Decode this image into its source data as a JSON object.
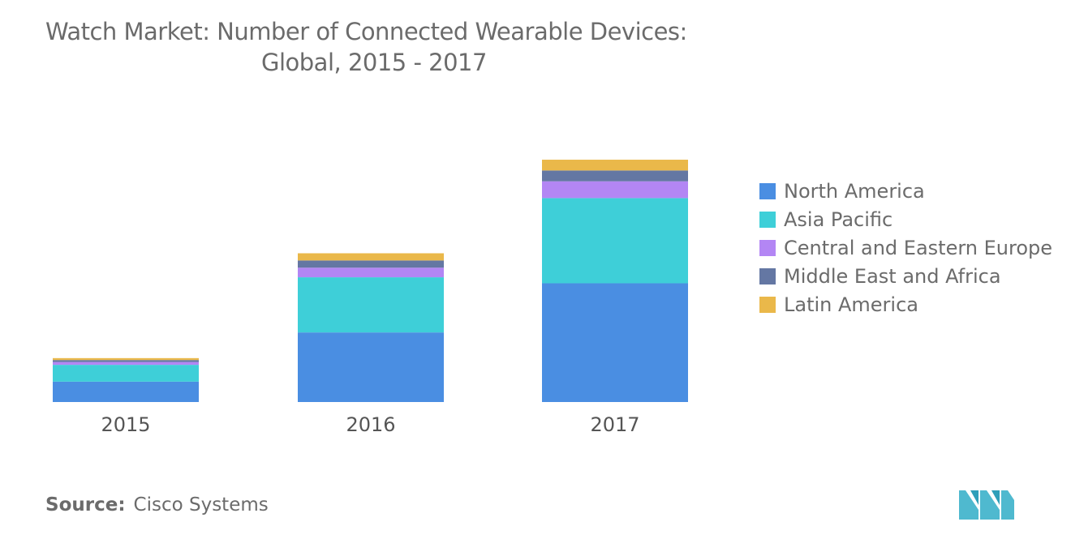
{
  "title_line1": "Watch Market: Number of Connected Wearable Devices:",
  "title_line2": "Global, 2015 - 2017",
  "source_label": "Source:",
  "source_value": "Cisco Systems",
  "logo_icon": "mordor-intelligence-logo-icon",
  "colors": {
    "north_america": "#4a8ee2",
    "asia_pacific": "#3ecfd8",
    "central_eastern_europe": "#b386f4",
    "middle_east_africa": "#6477a3",
    "latin_america": "#eab84a",
    "text": "#6b6b6b",
    "logo": "#4fb9cf"
  },
  "chart_data": {
    "type": "bar",
    "stacked": true,
    "categories": [
      "2015",
      "2016",
      "2017"
    ],
    "ylim": [
      0,
      100
    ],
    "grid": false,
    "legend": "right",
    "series": [
      {
        "name": "North America",
        "values": [
          8.5,
          29,
          49.5
        ],
        "color": "#4a8ee2"
      },
      {
        "name": "Asia Pacific",
        "values": [
          7,
          23,
          35.5
        ],
        "color": "#3ecfd8"
      },
      {
        "name": "Central and Eastern Europe",
        "values": [
          1.2,
          4,
          7
        ],
        "color": "#b386f4"
      },
      {
        "name": "Middle East and Africa",
        "values": [
          0.8,
          3,
          4.5
        ],
        "color": "#6477a3"
      },
      {
        "name": "Latin America",
        "values": [
          0.8,
          3,
          4.5
        ],
        "color": "#eab84a"
      }
    ]
  }
}
